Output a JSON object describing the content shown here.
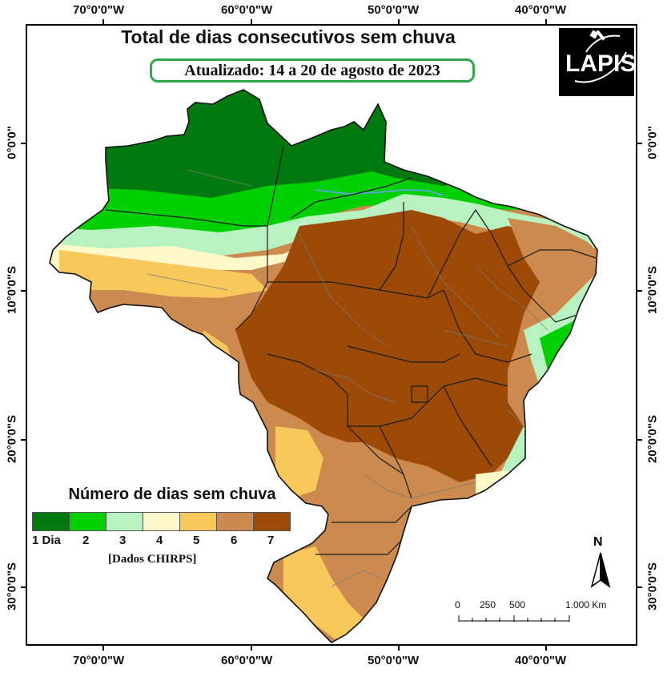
{
  "title": "Total de dias consecutivos sem chuva",
  "subtitle": "Atualizado: 14 a 20 de agosto de 2023",
  "logo": {
    "text": "LAPIS",
    "icon": "satellite-icon"
  },
  "longitude_labels": [
    "70°0'0\"W",
    "60°0'0\"W",
    "50°0'0\"W",
    "40°0'0\"W"
  ],
  "latitude_labels": [
    "0°0'0\"",
    "10°0'0\"S",
    "20°0'0\"S",
    "30°0'0\"S"
  ],
  "legend": {
    "title": "Número de dias sem chuva",
    "classes": [
      {
        "label": "1 Dia",
        "color": "#007a0f"
      },
      {
        "label": "2",
        "color": "#00d000"
      },
      {
        "label": "3",
        "color": "#b8f2c0"
      },
      {
        "label": "4",
        "color": "#fff8c8"
      },
      {
        "label": "5",
        "color": "#f8c85a"
      },
      {
        "label": "6",
        "color": "#cc8a4e"
      },
      {
        "label": "7",
        "color": "#9c4a06"
      }
    ],
    "source": "[Dados CHIRPS]"
  },
  "north_arrow": {
    "label": "N"
  },
  "scale": {
    "labels": [
      "0",
      "250",
      "500",
      "1.000 Km"
    ]
  },
  "colors": {
    "frame": "#000000",
    "border_states": "#1a1a1a",
    "border_municipal": "#7a7a7a",
    "subtitle_border": "#2ea84a"
  }
}
